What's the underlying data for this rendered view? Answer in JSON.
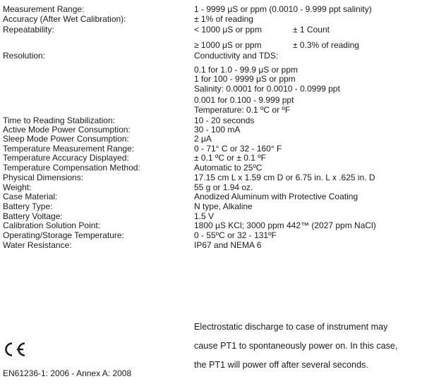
{
  "specs": [
    {
      "label": "Measurement Range:",
      "value": "1 - 9999 μS or ppm (0.0010 - 9.999 ppt salinity)"
    },
    {
      "label": "Accuracy (After Wet Calibration):",
      "value": "± 1% of reading"
    },
    {
      "label": "Repeatability:",
      "value": "< 1000 μS or ppm",
      "value2": "± 1 Count"
    },
    {
      "label": "",
      "value": "≥ 1000 μS or ppm",
      "value2": "± 0.3% of reading"
    },
    {
      "label": "Resolution:",
      "value": "Conductivity and TDS:"
    }
  ],
  "resolution_lines": [
    "0.1 for 1.0 - 99.9 μS or ppm",
    "1 for 100 - 9999 μS or ppm",
    "Salinity:  0.0001 for 0.0010 - 0.0999 ppt",
    "0.001 for 0.100 - 9.999 ppt",
    "Temperature: 0.1 ºC or ºF"
  ],
  "specs2": [
    {
      "label": "Time to Reading Stabilization:",
      "value": "10 - 20 seconds"
    },
    {
      "label": "Active Mode Power Consumption:",
      "value": "30 - 100 mA"
    },
    {
      "label": "Sleep Mode Power Consumption:",
      "value": "2 μA"
    },
    {
      "label": "Temperature Measurement Range:",
      "value": "0 - 71° C or 32 - 160° F"
    },
    {
      "label": "Temperature Accuracy Displayed:",
      "value": "± 0.1 ºC or ± 0.1 ºF"
    },
    {
      "label": "Temperature Compensation Method:",
      "value": "Automatic to 25ºC"
    },
    {
      "label": "Physical Dimensions:",
      "value": "17.15 cm L x 1.59 cm D or 6.75 in. L x .625 in. D"
    },
    {
      "label": "Weight:",
      "value": "55 g or 1.94 oz."
    },
    {
      "label": "Case Material:",
      "value": "Anodized Aluminum with Protective Coating"
    },
    {
      "label": "Battery Type:",
      "value": "N type, Alkaline"
    },
    {
      "label": "Battery Voltage:",
      "value": "1.5 V"
    },
    {
      "label": "Calibration Solution Point:",
      "value": "1800 μS KCl; 3000 ppm 442™ (2027 ppm NaCl)"
    },
    {
      "label": "Operating/Storage Temperature:",
      "value": "0 - 55ºC or 32 - 131ºF"
    },
    {
      "label": "Water Resistance:",
      "value": "IP67 and NEMA 6"
    }
  ],
  "ce_label": "CE",
  "note_lines": [
    "Electrostatic discharge to case of instrument may",
    "cause PT1 to spontaneously power on. In this case,",
    "the PT1 will power off after several seconds."
  ],
  "standard": "EN61236-1: 2006 - Annex A: 2008"
}
